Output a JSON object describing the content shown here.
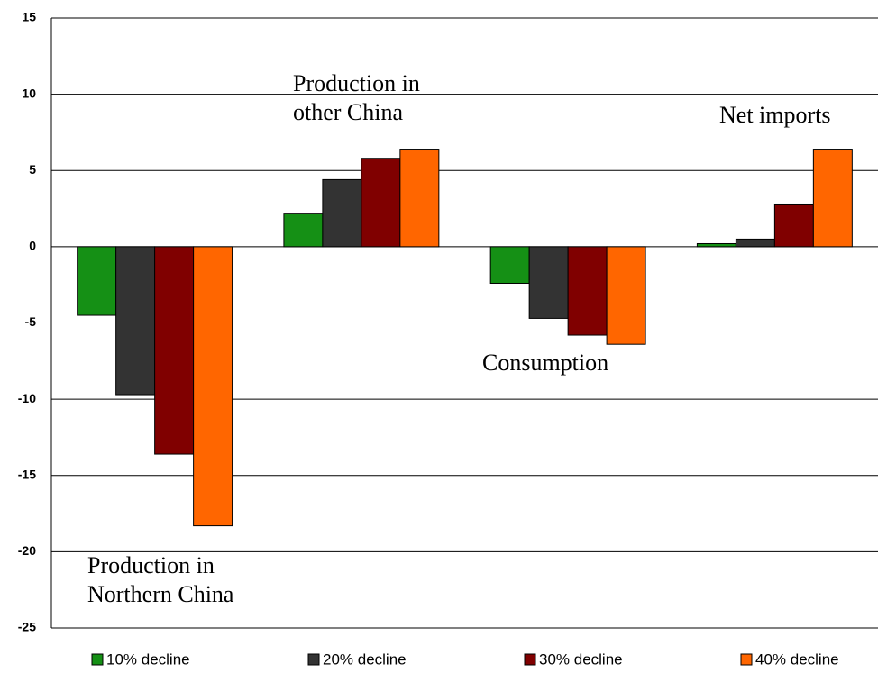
{
  "chart_data": {
    "type": "bar",
    "categories": [
      "Production in\nNorthern China",
      "Production in\nother China",
      "Consumption",
      "Net imports"
    ],
    "series": [
      {
        "name": "10% decline",
        "color": "#159015",
        "values": [
          -4.5,
          2.2,
          -2.4,
          0.2
        ]
      },
      {
        "name": "20% decline",
        "color": "#333333",
        "values": [
          -9.7,
          4.4,
          -4.7,
          0.5
        ]
      },
      {
        "name": "30% decline",
        "color": "#800000",
        "values": [
          -13.6,
          5.8,
          -5.8,
          2.8
        ]
      },
      {
        "name": "40% decline",
        "color": "#ff6600",
        "values": [
          -18.3,
          6.4,
          -6.4,
          6.4
        ]
      }
    ],
    "ylim": [
      -25,
      15
    ],
    "yticks": [
      -25,
      -20,
      -15,
      -10,
      -5,
      0,
      5,
      10,
      15
    ],
    "grid": true
  }
}
